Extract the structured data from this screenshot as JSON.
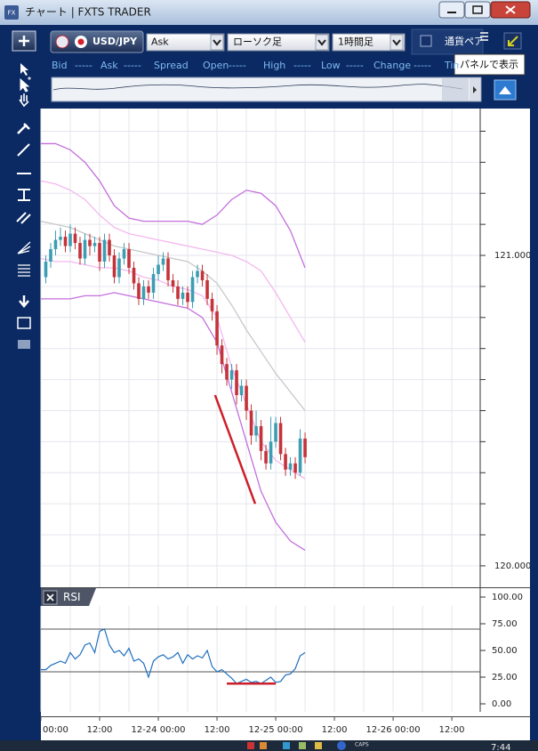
{
  "window": {
    "title": "チャート | FXTS TRADER"
  },
  "toolbar": {
    "symbol": "USD/JPY",
    "price_side": "Ask",
    "chart_type": "ローソク足",
    "timeframe": "1時間足",
    "pair_checkbox": "通貨ペア",
    "tooltip": "パネルで表示"
  },
  "quote_bar": [
    "Bid",
    "-----",
    "Ask",
    "-----",
    "Spread",
    "Open",
    "-----",
    "High",
    "-----",
    "Low",
    "-----",
    "Change",
    "-----",
    "Time"
  ],
  "chart_data": [
    {
      "type": "candlestick",
      "up_color": "#3c9db3",
      "down_color": "#c4333a",
      "x": [
        1,
        2,
        3,
        4,
        5,
        6,
        7,
        8,
        9,
        10,
        11,
        12,
        13,
        14,
        15,
        16,
        17,
        18,
        19,
        20,
        21,
        22,
        23,
        24,
        25,
        26,
        27,
        28,
        29,
        30,
        31,
        32,
        33,
        34,
        35,
        36,
        37,
        38,
        39,
        40,
        41,
        42,
        43,
        44,
        45,
        46,
        47,
        48,
        49,
        50,
        51,
        52,
        53,
        54
      ],
      "open": [
        120.93,
        120.98,
        121.02,
        121.05,
        121.06,
        121.03,
        121.07,
        121.04,
        120.99,
        121.05,
        121.03,
        121.04,
        120.98,
        121.05,
        121.0,
        120.93,
        120.99,
        121.02,
        120.96,
        120.91,
        120.86,
        120.9,
        120.88,
        120.94,
        120.97,
        120.99,
        120.92,
        120.9,
        120.86,
        120.88,
        120.85,
        120.93,
        120.95,
        120.92,
        120.86,
        120.82,
        120.71,
        120.65,
        120.6,
        120.63,
        120.55,
        120.58,
        120.5,
        120.42,
        120.45,
        120.37,
        120.33,
        120.4,
        120.46,
        120.36,
        120.31,
        120.33,
        120.3,
        120.41
      ],
      "high": [
        121.0,
        121.04,
        121.08,
        121.09,
        121.08,
        121.1,
        121.09,
        121.06,
        121.07,
        121.07,
        121.06,
        121.06,
        121.07,
        121.07,
        121.02,
        121.01,
        121.04,
        121.04,
        120.98,
        120.93,
        120.92,
        120.92,
        120.96,
        121.0,
        121.01,
        121.01,
        120.94,
        120.92,
        120.9,
        120.9,
        120.95,
        120.97,
        120.97,
        120.94,
        120.88,
        120.84,
        120.73,
        120.67,
        120.65,
        120.65,
        120.6,
        120.6,
        120.52,
        120.5,
        120.47,
        120.39,
        120.48,
        120.48,
        120.48,
        120.38,
        120.35,
        120.35,
        120.44,
        120.43
      ],
      "low": [
        120.91,
        120.96,
        121.0,
        121.03,
        121.01,
        121.01,
        121.02,
        120.97,
        120.97,
        121.0,
        121.01,
        120.95,
        120.96,
        120.98,
        120.91,
        120.91,
        120.97,
        120.94,
        120.89,
        120.84,
        120.84,
        120.86,
        120.86,
        120.92,
        120.95,
        120.9,
        120.88,
        120.84,
        120.84,
        120.83,
        120.83,
        120.91,
        120.9,
        120.84,
        120.79,
        120.68,
        120.62,
        120.58,
        120.57,
        120.52,
        120.53,
        120.47,
        120.39,
        120.4,
        120.34,
        120.31,
        120.31,
        120.38,
        120.34,
        120.29,
        120.29,
        120.28,
        120.29,
        120.33
      ],
      "close": [
        120.98,
        121.02,
        121.05,
        121.06,
        121.03,
        121.07,
        121.04,
        120.99,
        121.05,
        121.03,
        121.04,
        120.98,
        121.05,
        121.0,
        120.93,
        120.99,
        121.02,
        120.96,
        120.91,
        120.86,
        120.9,
        120.88,
        120.94,
        120.97,
        120.99,
        120.92,
        120.9,
        120.86,
        120.88,
        120.85,
        120.93,
        120.95,
        120.92,
        120.86,
        120.82,
        120.71,
        120.65,
        120.6,
        120.63,
        120.55,
        120.58,
        120.5,
        120.42,
        120.45,
        120.37,
        120.33,
        120.4,
        120.46,
        120.36,
        120.31,
        120.33,
        120.3,
        120.41,
        120.35
      ],
      "overlay_x": [
        0,
        3,
        6,
        9,
        12,
        15,
        18,
        21,
        24,
        27,
        30,
        33,
        36,
        39,
        42,
        45,
        48,
        51,
        54
      ],
      "overlays": [
        {
          "color": "#c46fdc",
          "values": [
            121.36,
            121.36,
            121.34,
            121.3,
            121.24,
            121.16,
            121.12,
            121.11,
            121.11,
            121.11,
            121.11,
            121.1,
            121.13,
            121.18,
            121.21,
            121.2,
            121.16,
            121.08,
            120.96
          ]
        },
        {
          "color": "#f4b8ef",
          "values": [
            121.24,
            121.23,
            121.21,
            121.18,
            121.13,
            121.09,
            121.07,
            121.06,
            121.05,
            121.04,
            121.03,
            121.02,
            121.01,
            121.0,
            120.98,
            120.95,
            120.88,
            120.8,
            120.72
          ]
        },
        {
          "color": "#c8c8c8",
          "values": [
            121.11,
            121.1,
            121.09,
            121.07,
            121.05,
            121.03,
            121.02,
            121.01,
            121.0,
            120.99,
            120.98,
            120.95,
            120.91,
            120.84,
            120.76,
            120.69,
            120.62,
            120.56,
            120.5
          ]
        },
        {
          "color": "#f4b8ef",
          "values": [
            120.99,
            120.98,
            120.98,
            120.97,
            120.96,
            120.96,
            120.95,
            120.93,
            120.92,
            120.9,
            120.89,
            120.87,
            120.8,
            120.64,
            120.52,
            120.4,
            120.34,
            120.31,
            120.28
          ]
        },
        {
          "color": "#c46fdc",
          "values": [
            120.86,
            120.86,
            120.86,
            120.87,
            120.87,
            120.88,
            120.87,
            120.86,
            120.85,
            120.84,
            120.83,
            120.8,
            120.72,
            120.56,
            120.4,
            120.24,
            120.14,
            120.08,
            120.05
          ]
        }
      ],
      "trend_line": {
        "color": "#cc1f2a",
        "x": [
          35.6,
          43.8
        ],
        "values": [
          120.55,
          120.2
        ]
      },
      "xlim": [
        0,
        89.8
      ],
      "ylim": [
        119.931,
        121.473
      ],
      "yticks": [
        {
          "value": 120,
          "label": "120.000"
        },
        {
          "value": 121,
          "label": "121.000"
        }
      ],
      "minor_yticks": [
        120.1,
        120.2,
        120.3,
        120.4,
        120.5,
        120.6,
        120.7,
        120.8,
        120.9,
        121.1,
        121.2,
        121.3,
        121.4
      ],
      "grid": true
    },
    {
      "type": "line",
      "title": "RSI",
      "color": "#1f6fbf",
      "x": [
        0,
        1,
        2,
        3,
        4,
        5,
        6,
        7,
        8,
        9,
        10,
        11,
        12,
        13,
        14,
        15,
        16,
        17,
        18,
        19,
        20,
        21,
        22,
        23,
        24,
        25,
        26,
        27,
        28,
        29,
        30,
        31,
        32,
        33,
        34,
        35,
        36,
        37,
        38,
        39,
        40,
        41,
        42,
        43,
        44,
        45,
        46,
        47,
        48,
        49,
        50,
        51,
        52,
        53,
        54
      ],
      "values": [
        32,
        32,
        36,
        38,
        40,
        38,
        48,
        42,
        46,
        55,
        57,
        48,
        68,
        70,
        55,
        48,
        50,
        45,
        52,
        40,
        42,
        38,
        25,
        40,
        44,
        46,
        42,
        44,
        48,
        38,
        46,
        42,
        45,
        43,
        50,
        35,
        30,
        32,
        28,
        24,
        19,
        21,
        23,
        20,
        21,
        19,
        22,
        25,
        20,
        21,
        27,
        28,
        33,
        45,
        48
      ],
      "levels": [
        70,
        30
      ],
      "trend_line": {
        "color": "#cc1f2a",
        "x": [
          38,
          48
        ],
        "values": [
          19,
          19
        ]
      },
      "xlim": [
        0,
        89.8
      ],
      "ylim": [
        -7.5,
        107.5
      ],
      "yticks": [
        {
          "value": 100,
          "label": "100.00"
        },
        {
          "value": 75,
          "label": "75.00"
        },
        {
          "value": 50,
          "label": "50.00"
        },
        {
          "value": 25,
          "label": "25.00"
        },
        {
          "value": 0,
          "label": "0.00"
        }
      ],
      "xticks": [
        {
          "value": 0,
          "label": "00:00"
        },
        {
          "value": 12,
          "label": "12:00"
        },
        {
          "value": 24,
          "label": "12-24 00:00"
        },
        {
          "value": 36,
          "label": "12:00"
        },
        {
          "value": 48,
          "label": "12-25 00:00"
        },
        {
          "value": 60,
          "label": "12:00"
        },
        {
          "value": 72,
          "label": "12-26 00:00"
        },
        {
          "value": 84,
          "label": "12:00"
        }
      ],
      "minor_xticks": [
        6,
        18,
        30,
        42,
        54,
        66,
        78
      ],
      "grid": true
    }
  ],
  "taskbar": {
    "caps": "CAPS",
    "clock": "7:44"
  }
}
